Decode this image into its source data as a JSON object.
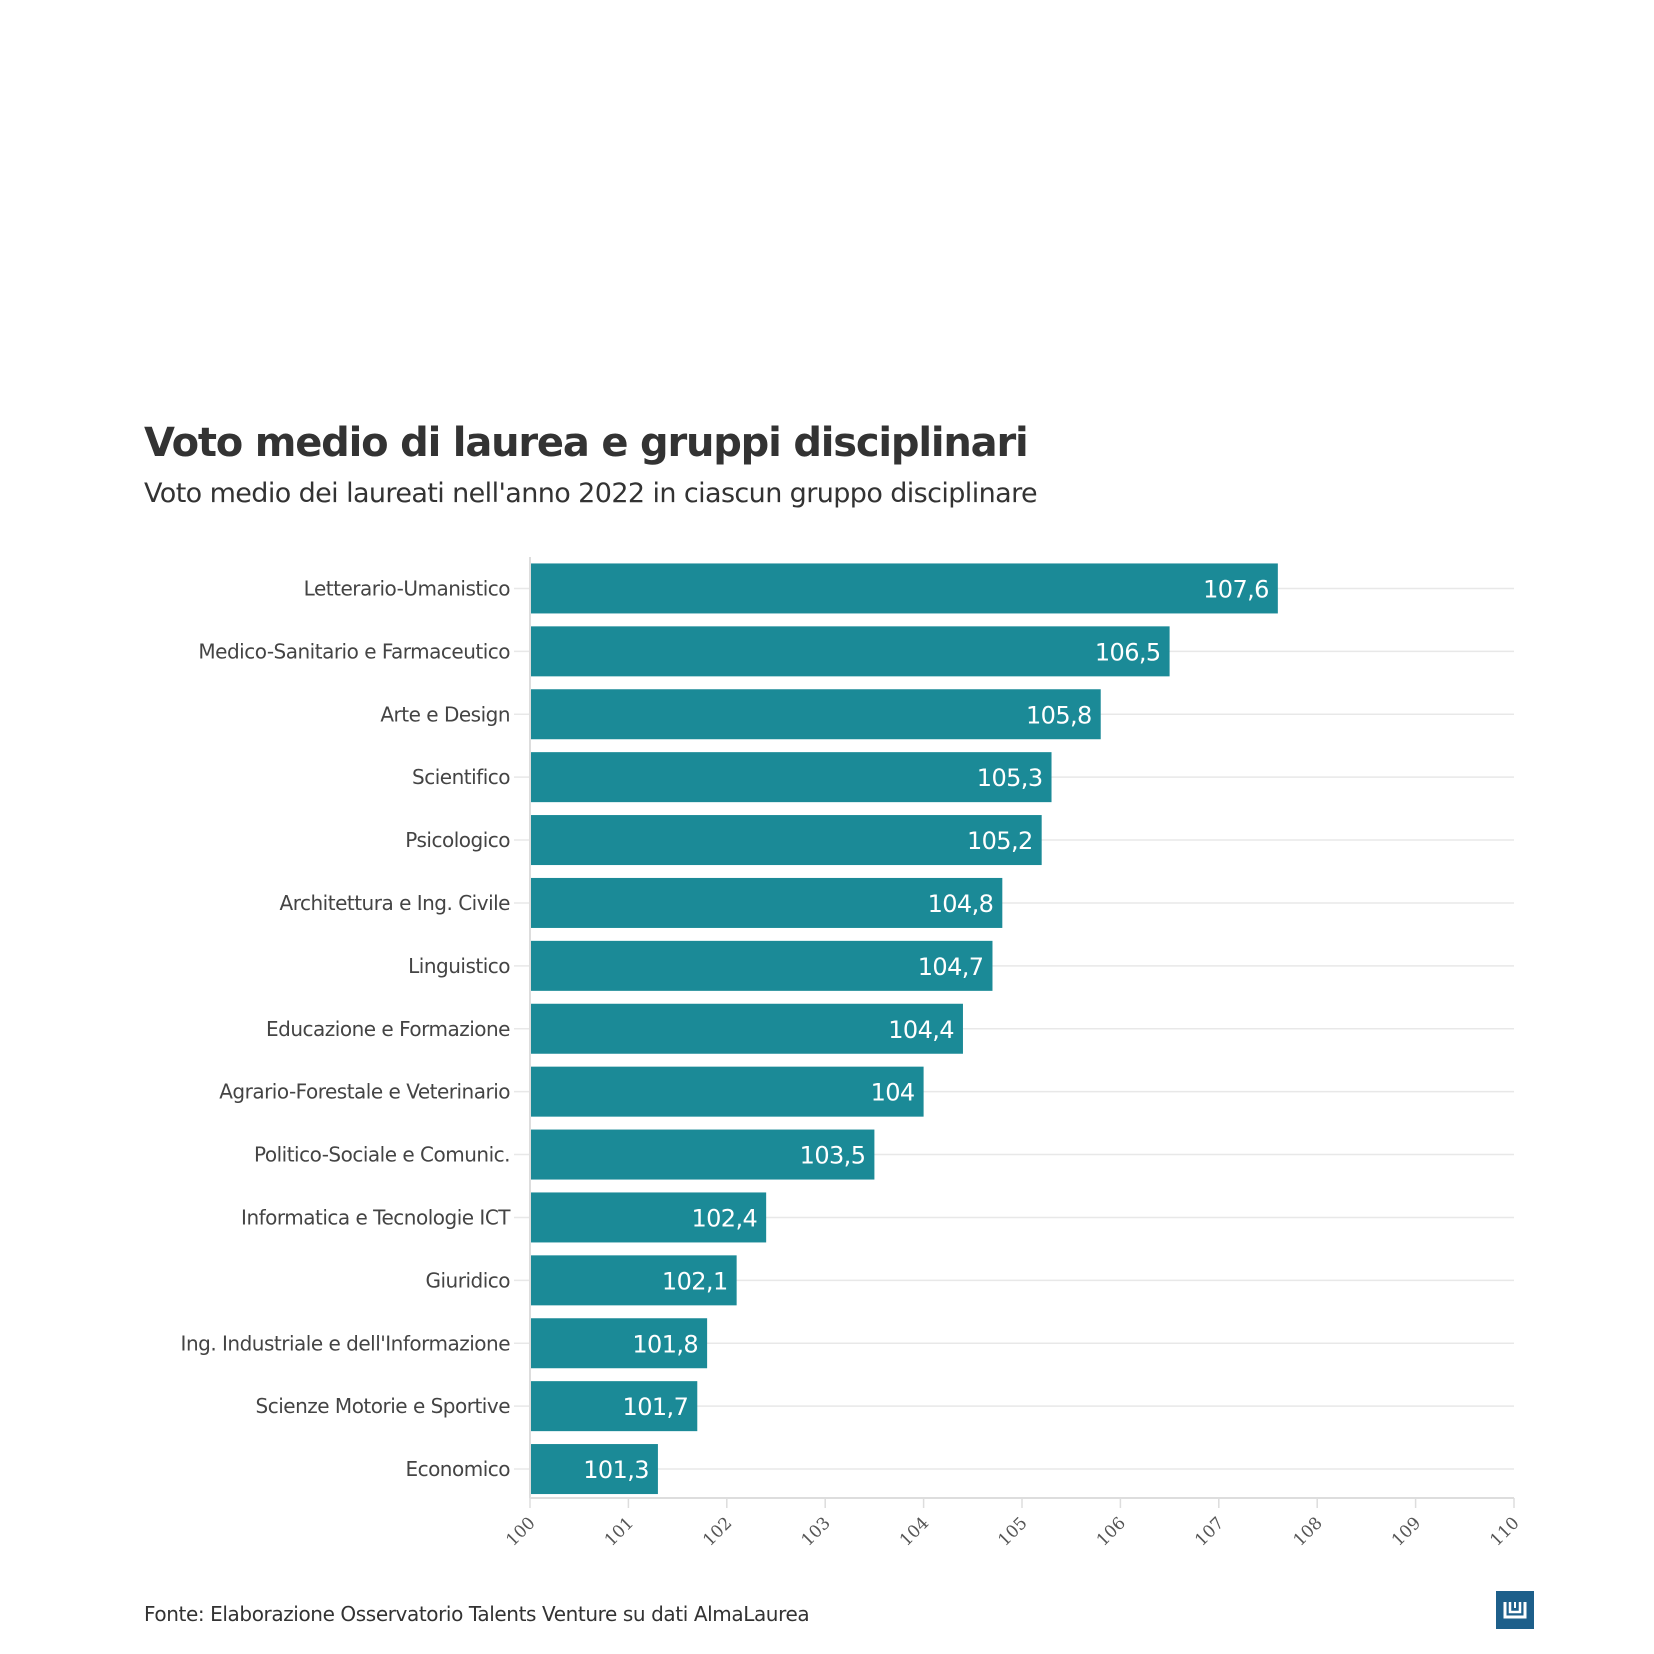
{
  "header": {
    "title": "Voto medio di laurea e gruppi disciplinari",
    "subtitle": "Voto medio dei laureati nell'anno 2022 in ciascun gruppo disciplinare"
  },
  "footer": {
    "source": "Fonte: Elaborazione Osservatorio Talents Venture su dati AlmaLaurea",
    "logo_icon": "datawrapper-logo-icon"
  },
  "colors": {
    "bar": "#1b8a97",
    "grid": "#e8e8e8",
    "axis": "#dddddd",
    "logo": "#1d5f8a"
  },
  "chart_data": {
    "type": "bar",
    "orientation": "horizontal",
    "title": "Voto medio di laurea e gruppi disciplinari",
    "subtitle": "Voto medio dei laureati nell'anno 2022 in ciascun gruppo disciplinare",
    "xlabel": "",
    "ylabel": "",
    "xlim": [
      100,
      110
    ],
    "xticks": [
      "100",
      "101",
      "102",
      "103",
      "104",
      "105",
      "106",
      "107",
      "108",
      "109",
      "110"
    ],
    "grid": true,
    "categories": [
      "Letterario-Umanistico",
      "Medico-Sanitario e Farmaceutico",
      "Arte e Design",
      "Scientifico",
      "Psicologico",
      "Architettura e Ing. Civile",
      "Linguistico",
      "Educazione e Formazione",
      "Agrario-Forestale e Veterinario",
      "Politico-Sociale e Comunic.",
      "Informatica e Tecnologie ICT",
      "Giuridico",
      "Ing. Industriale e dell'Informazione",
      "Scienze Motorie e Sportive",
      "Economico"
    ],
    "values": [
      107.6,
      106.5,
      105.8,
      105.3,
      105.2,
      104.8,
      104.7,
      104.4,
      104,
      103.5,
      102.4,
      102.1,
      101.8,
      101.7,
      101.3
    ],
    "value_labels": [
      "107,6",
      "106,5",
      "105,8",
      "105,3",
      "105,2",
      "104,8",
      "104,7",
      "104,4",
      "104",
      "103,5",
      "102,4",
      "102,1",
      "101,8",
      "101,7",
      "101,3"
    ]
  }
}
